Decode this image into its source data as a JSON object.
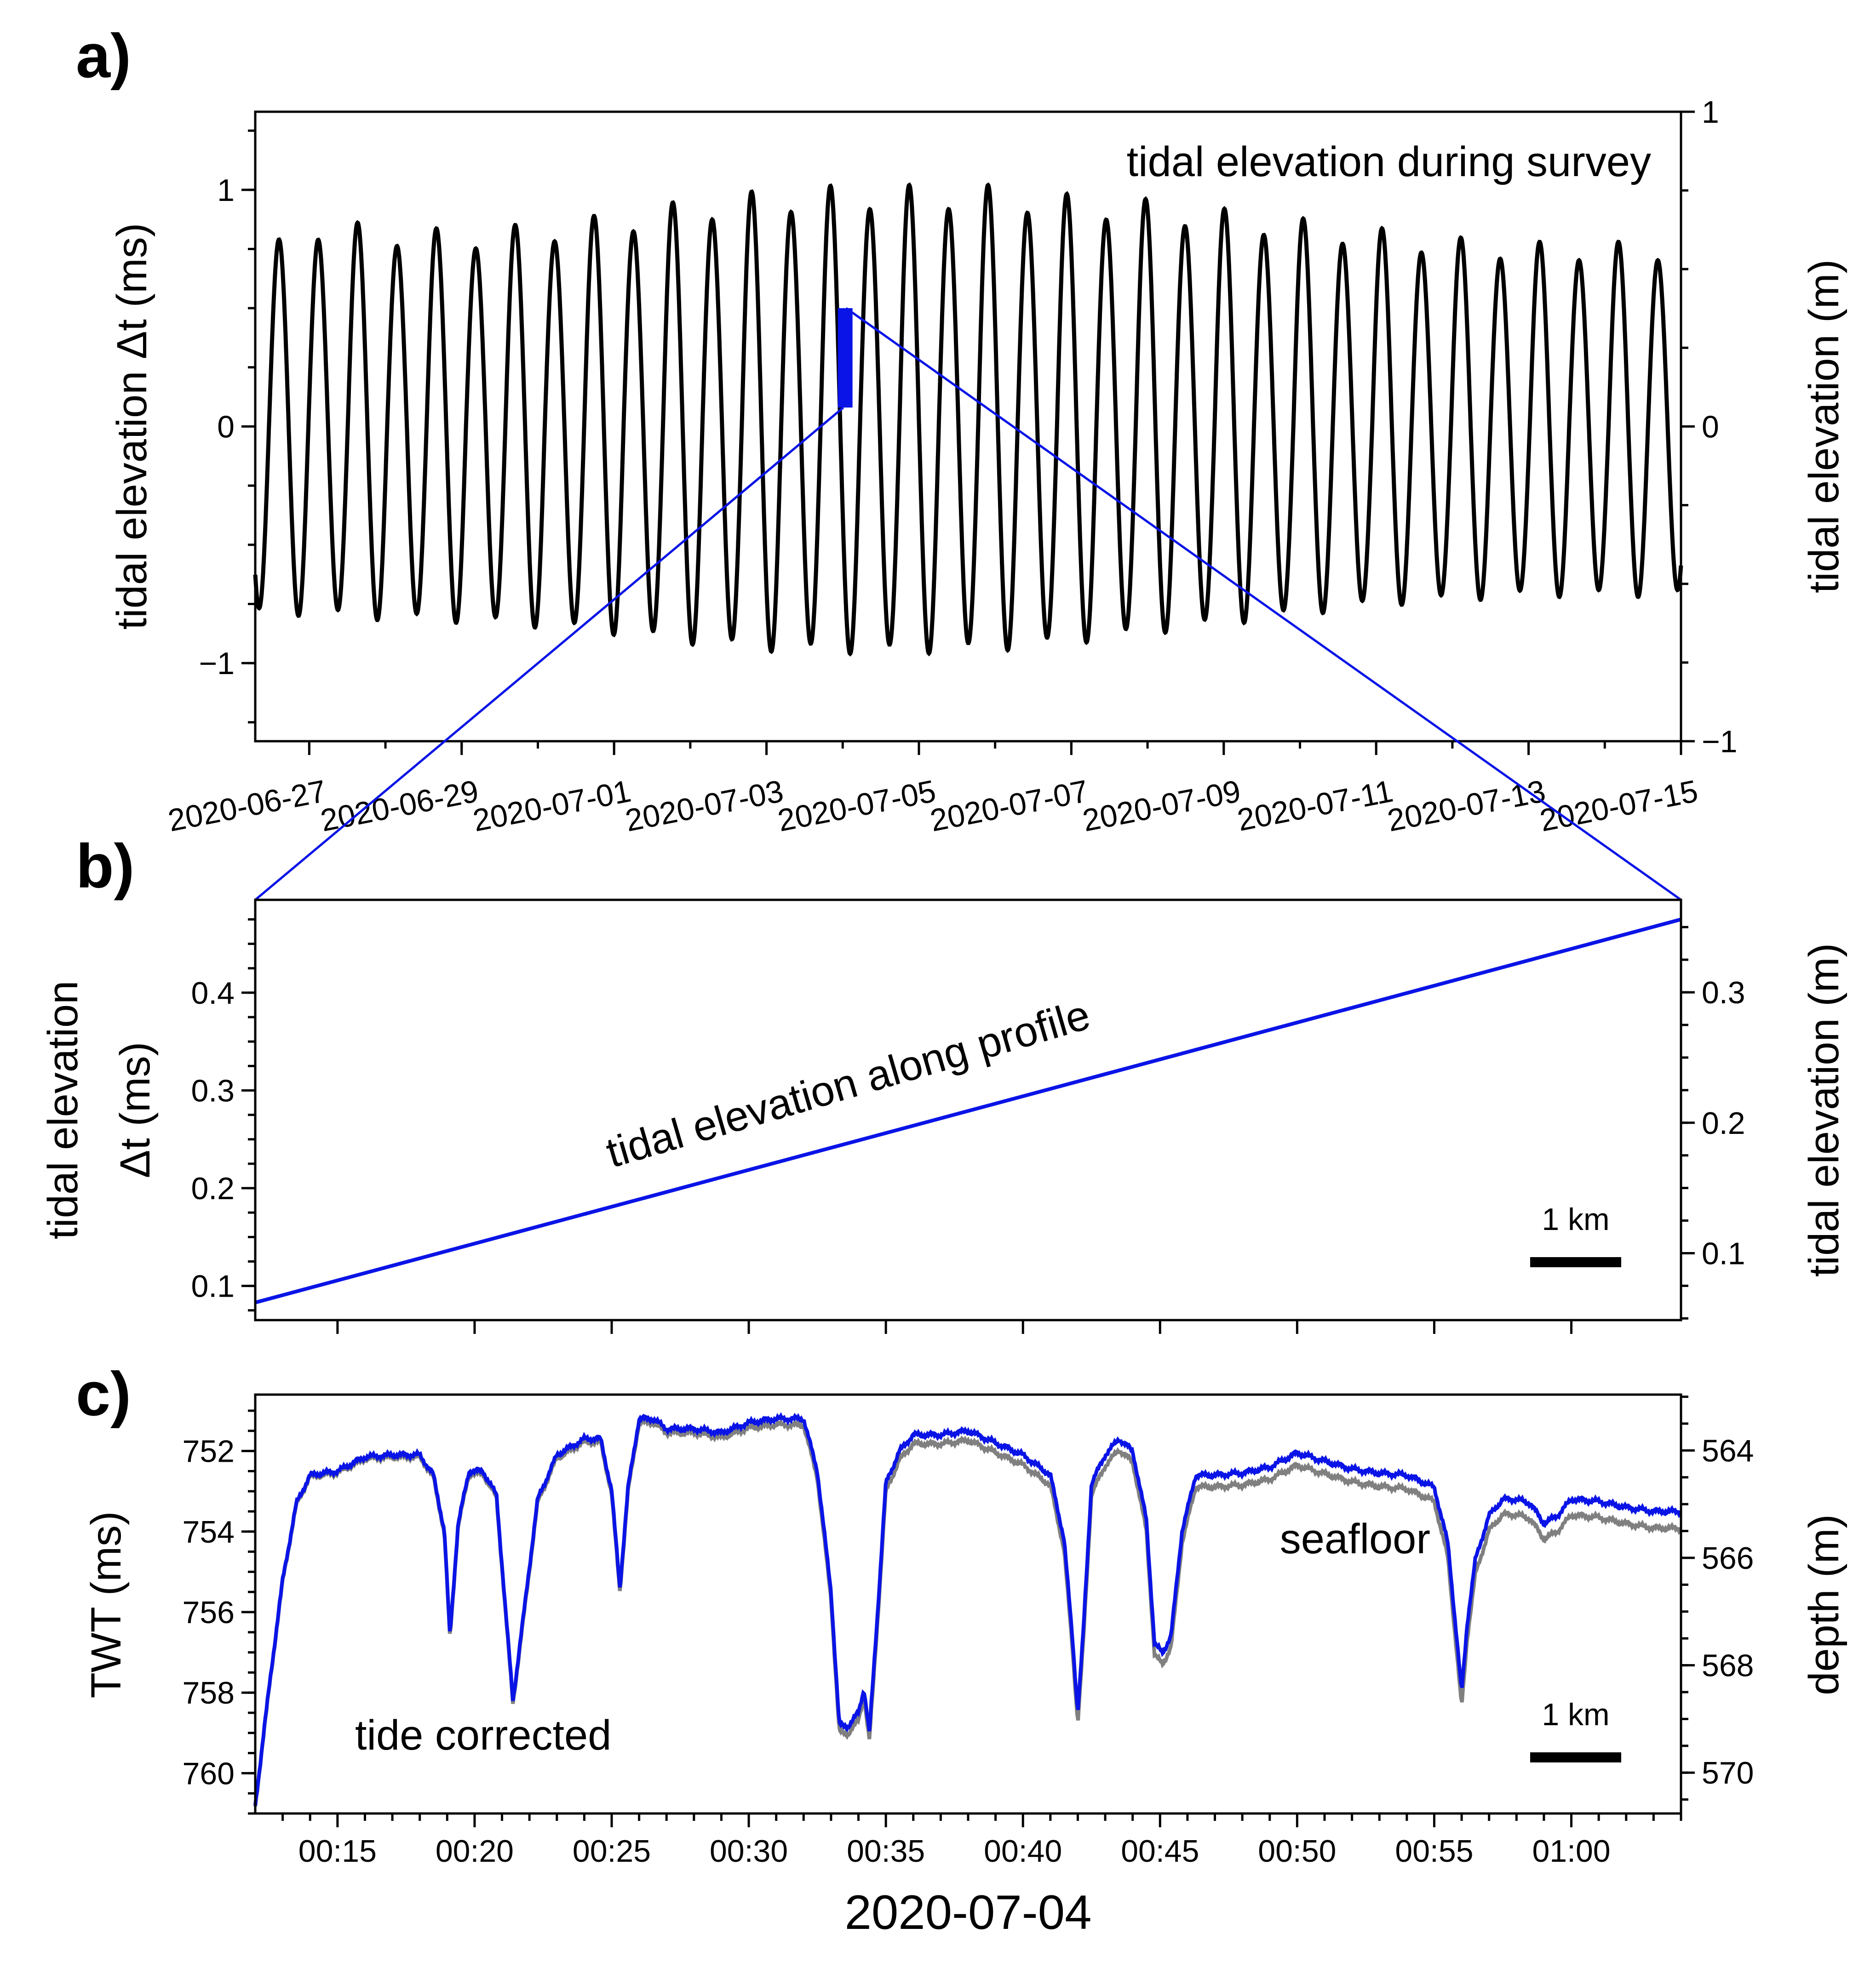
{
  "colors": {
    "tide": "#000000",
    "profile": "#0a14e6",
    "seafloor": "#808080",
    "corrected": "#0a14e6",
    "scalebar": "#000000"
  },
  "panels": {
    "a": {
      "letter": "a)",
      "annotation": "tidal elevation during survey",
      "ylabel_left": "tidal elevation Δt (ms)",
      "ylabel_right": "tidal elevation (m)"
    },
    "b": {
      "letter": "b)",
      "annotation": "tidal elevation along profile",
      "ylabel_left_line1": "tidal elevation",
      "ylabel_left_line2": "Δt (ms)",
      "ylabel_right": "tidal elevation (m)",
      "scalebar_label": "1 km"
    },
    "c": {
      "letter": "c)",
      "xlabel": "2020-07-04",
      "ylabel_left": "TWT (ms)",
      "ylabel_right": "depth (m)",
      "label_seafloor": "seafloor",
      "label_corrected": "tide corrected",
      "scalebar_label": "1 km"
    }
  },
  "chart_data": [
    {
      "panel": "a",
      "type": "line",
      "x_unit": "days",
      "x_range": [
        "2020-06-26 07:00",
        "2020-07-15 00:00"
      ],
      "ylim_left": [
        -1.33,
        1.33
      ],
      "ylim_right": [
        -1,
        1
      ],
      "y_ticks_left": [
        {
          "v": -1,
          "label": "−1"
        },
        {
          "v": 0,
          "label": "0"
        },
        {
          "v": 1,
          "label": "1"
        }
      ],
      "y_ticks_right": [
        {
          "v": -1,
          "label": "−1"
        },
        {
          "v": 0,
          "label": "0"
        },
        {
          "v": 1,
          "label": "1"
        }
      ],
      "x_ticks": [
        {
          "t": "2020-06-27",
          "label": "2020-06-27"
        },
        {
          "t": "2020-06-29",
          "label": "2020-06-29"
        },
        {
          "t": "2020-07-01",
          "label": "2020-07-01"
        },
        {
          "t": "2020-07-03",
          "label": "2020-07-03"
        },
        {
          "t": "2020-07-05",
          "label": "2020-07-05"
        },
        {
          "t": "2020-07-07",
          "label": "2020-07-07"
        },
        {
          "t": "2020-07-09",
          "label": "2020-07-09"
        },
        {
          "t": "2020-07-11",
          "label": "2020-07-11"
        },
        {
          "t": "2020-07-13",
          "label": "2020-07-13"
        },
        {
          "t": "2020-07-15",
          "label": "2020-07-15"
        }
      ],
      "series": [
        {
          "color": "#000000",
          "period_days": 0.517,
          "phase_days": 0.18,
          "amplitude": [
            {
              "t": "2020-06-26 07:00",
              "high": 0.72,
              "low": -0.8
            },
            {
              "t": "2020-06-27 00:00",
              "high": 0.88,
              "low": -0.8
            },
            {
              "t": "2020-06-28 00:00",
              "high": 0.85,
              "low": -0.82
            },
            {
              "t": "2020-06-29 00:00",
              "high": 0.83,
              "low": -0.83
            },
            {
              "t": "2020-06-30 00:00",
              "high": 0.86,
              "low": -0.85
            },
            {
              "t": "2020-07-01 00:00",
              "high": 0.9,
              "low": -0.88
            },
            {
              "t": "2020-07-02 00:00",
              "high": 0.96,
              "low": -0.92
            },
            {
              "t": "2020-07-03 00:00",
              "high": 1.0,
              "low": -0.95
            },
            {
              "t": "2020-07-04 00:00",
              "high": 1.02,
              "low": -0.96
            },
            {
              "t": "2020-07-05 00:00",
              "high": 1.02,
              "low": -0.96
            },
            {
              "t": "2020-07-06 00:00",
              "high": 1.02,
              "low": -0.95
            },
            {
              "t": "2020-07-07 00:00",
              "high": 0.98,
              "low": -0.92
            },
            {
              "t": "2020-07-08 00:00",
              "high": 0.96,
              "low": -0.88
            },
            {
              "t": "2020-07-09 00:00",
              "high": 0.92,
              "low": -0.84
            },
            {
              "t": "2020-07-10 00:00",
              "high": 0.88,
              "low": -0.8
            },
            {
              "t": "2020-07-11 00:00",
              "high": 0.84,
              "low": -0.76
            },
            {
              "t": "2020-07-12 00:00",
              "high": 0.8,
              "low": -0.74
            },
            {
              "t": "2020-07-13 00:00",
              "high": 0.78,
              "low": -0.72
            },
            {
              "t": "2020-07-14 00:00",
              "high": 0.78,
              "low": -0.72
            },
            {
              "t": "2020-07-15 00:00",
              "high": 0.78,
              "low": -0.72
            }
          ]
        }
      ],
      "highlight": {
        "color": "#0a14e6",
        "x_range": [
          "2020-07-04 00:12",
          "2020-07-04 01:04"
        ],
        "y_range": [
          0.08,
          0.5
        ]
      }
    },
    {
      "panel": "b",
      "type": "line",
      "ylim_left": [
        0.065,
        0.495
      ],
      "ylim_right": [
        0.0487,
        0.3709
      ],
      "y_ticks_left": [
        {
          "v": 0.1,
          "label": "0.1"
        },
        {
          "v": 0.2,
          "label": "0.2"
        },
        {
          "v": 0.3,
          "label": "0.3"
        },
        {
          "v": 0.4,
          "label": "0.4"
        }
      ],
      "y_ticks_right": [
        {
          "v": 0.1,
          "label": "0.1"
        },
        {
          "v": 0.2,
          "label": "0.2"
        },
        {
          "v": 0.3,
          "label": "0.3"
        }
      ],
      "series": [
        {
          "color": "#0a14e6",
          "x_min": [
            12,
            64
          ],
          "y": [
            0.083,
            0.475
          ]
        }
      ]
    },
    {
      "panel": "c",
      "type": "line",
      "x_unit": "minutes after 2020-07-04 00:00",
      "xlim": [
        12,
        64
      ],
      "ylim_left": [
        761,
        750.6
      ],
      "ylim_right": [
        570.76,
        562.96
      ],
      "x_ticks": [
        {
          "v": 15,
          "label": "00:15"
        },
        {
          "v": 20,
          "label": "00:20"
        },
        {
          "v": 25,
          "label": "00:25"
        },
        {
          "v": 30,
          "label": "00:30"
        },
        {
          "v": 35,
          "label": "00:35"
        },
        {
          "v": 40,
          "label": "00:40"
        },
        {
          "v": 45,
          "label": "00:45"
        },
        {
          "v": 50,
          "label": "00:50"
        },
        {
          "v": 55,
          "label": "00:55"
        },
        {
          "v": 60,
          "label": "01:00"
        }
      ],
      "y_ticks_left": [
        {
          "v": 752,
          "label": "752"
        },
        {
          "v": 754,
          "label": "754"
        },
        {
          "v": 756,
          "label": "756"
        },
        {
          "v": 758,
          "label": "758"
        },
        {
          "v": 760,
          "label": "760"
        }
      ],
      "y_ticks_right": [
        {
          "v": 564,
          "label": "564"
        },
        {
          "v": 566,
          "label": "566"
        },
        {
          "v": 568,
          "label": "568"
        },
        {
          "v": 570,
          "label": "570"
        }
      ],
      "series": [
        {
          "name": "tide corrected",
          "color": "#0a14e6",
          "x": [
            12.0,
            12.5,
            13.0,
            13.5,
            14.0,
            15.0,
            16.0,
            17.0,
            18.0,
            18.5,
            18.9,
            19.1,
            19.4,
            19.8,
            20.3,
            20.8,
            21.1,
            21.4,
            21.8,
            22.3,
            23.0,
            24.0,
            24.6,
            25.0,
            25.3,
            25.6,
            26.0,
            26.5,
            27.0,
            28.0,
            29.0,
            30.0,
            31.0,
            32.0,
            32.5,
            33.0,
            33.3,
            33.6,
            34.0,
            34.2,
            34.4,
            34.7,
            35.0,
            35.5,
            36.0,
            37.0,
            38.0,
            39.0,
            40.0,
            41.0,
            41.5,
            41.8,
            42.0,
            42.2,
            42.5,
            43.0,
            43.5,
            44.0,
            44.5,
            44.8,
            45.1,
            45.4,
            45.8,
            46.3,
            47.0,
            48.0,
            49.0,
            50.0,
            51.0,
            52.0,
            53.0,
            54.0,
            55.0,
            55.5,
            55.8,
            56.0,
            56.2,
            56.5,
            57.0,
            57.5,
            58.0,
            58.5,
            59.0,
            59.5,
            60.0,
            61.0,
            62.0,
            63.0,
            64.0
          ],
          "y": [
            760.8,
            757.9,
            755.2,
            753.3,
            752.6,
            752.5,
            752.15,
            752.1,
            752.1,
            752.6,
            754.0,
            756.6,
            753.8,
            752.5,
            752.5,
            753.1,
            755.7,
            758.2,
            756.0,
            753.2,
            752.1,
            751.7,
            751.7,
            753.0,
            755.4,
            752.9,
            751.2,
            751.2,
            751.45,
            751.45,
            751.55,
            751.3,
            751.2,
            751.2,
            752.5,
            755.5,
            758.8,
            758.85,
            758.5,
            757.9,
            759.0,
            756.0,
            752.8,
            752.0,
            751.6,
            751.6,
            751.5,
            751.8,
            752.1,
            752.6,
            754.2,
            756.6,
            758.5,
            756.5,
            752.8,
            752.1,
            751.7,
            752.0,
            753.7,
            756.8,
            757.0,
            756.6,
            754.0,
            752.6,
            752.6,
            752.55,
            752.4,
            752.05,
            752.25,
            752.45,
            752.55,
            752.6,
            752.9,
            754.3,
            756.5,
            758.0,
            756.3,
            754.7,
            753.6,
            753.2,
            753.2,
            753.3,
            753.8,
            753.6,
            753.2,
            753.25,
            753.4,
            753.5,
            753.5
          ]
        },
        {
          "name": "seafloor",
          "color": "#808080",
          "offset_ms": [
            {
              "x": 12,
              "d": 0.03
            },
            {
              "x": 28,
              "d": 0.1
            },
            {
              "x": 36,
              "d": 0.22
            },
            {
              "x": 45,
              "d": 0.28
            },
            {
              "x": 52,
              "d": 0.32
            },
            {
              "x": 58,
              "d": 0.38
            },
            {
              "x": 64,
              "d": 0.42
            }
          ]
        }
      ]
    }
  ]
}
